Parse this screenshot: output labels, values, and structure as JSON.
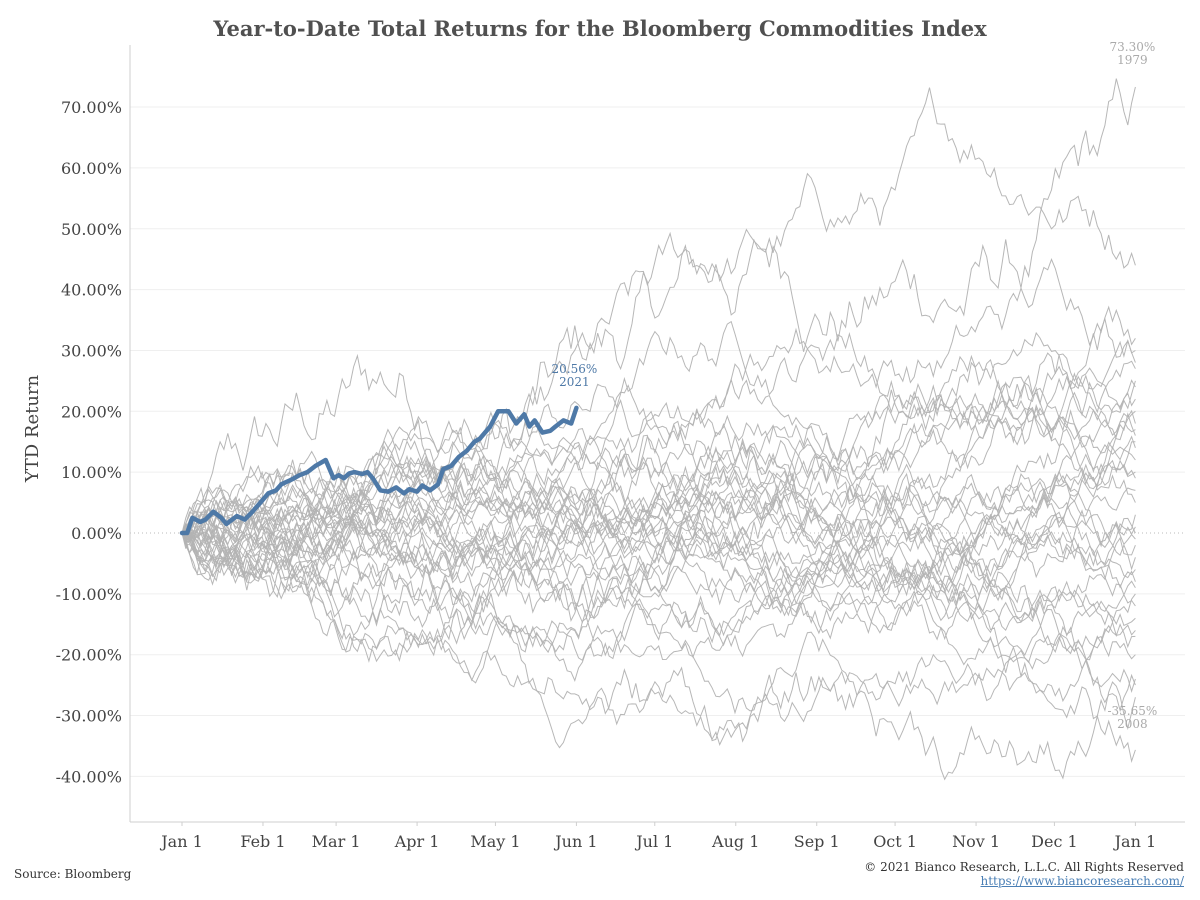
{
  "chart_data": {
    "type": "line",
    "title": "Year-to-Date Total Returns for the Bloomberg Commodities Index",
    "ylabel": "YTD Return",
    "xlabel": "",
    "ylim": [
      -0.45,
      0.78
    ],
    "xlim": [
      0,
      366
    ],
    "yticks": [
      -0.4,
      -0.3,
      -0.2,
      -0.1,
      0.0,
      0.1,
      0.2,
      0.3,
      0.4,
      0.5,
      0.6,
      0.7
    ],
    "ytick_labels": [
      "-40.00%",
      "-30.00%",
      "-20.00%",
      "-10.00%",
      "0.00%",
      "10.00%",
      "20.00%",
      "30.00%",
      "40.00%",
      "50.00%",
      "60.00%",
      "70.00%"
    ],
    "xticks": [
      {
        "label": "Jan 1",
        "day": 0
      },
      {
        "label": "Feb 1",
        "day": 31
      },
      {
        "label": "Mar 1",
        "day": 59
      },
      {
        "label": "Apr 1",
        "day": 90
      },
      {
        "label": "May 1",
        "day": 120
      },
      {
        "label": "Jun 1",
        "day": 151
      },
      {
        "label": "Jul 1",
        "day": 181
      },
      {
        "label": "Aug 1",
        "day": 212
      },
      {
        "label": "Sep 1",
        "day": 243
      },
      {
        "label": "Oct 1",
        "day": 273
      },
      {
        "label": "Nov 1",
        "day": 304
      },
      {
        "label": "Dec 1",
        "day": 334
      },
      {
        "label": "Jan 1",
        "day": 365
      }
    ],
    "grid": true,
    "highlight_color": "#4e79a7",
    "background_color": "#b3b3b3",
    "highlight_series": {
      "name": "2021",
      "x": [
        0,
        2,
        4,
        7,
        9,
        12,
        15,
        17,
        21,
        24,
        27,
        30,
        33,
        36,
        38,
        42,
        45,
        48,
        51,
        55,
        58,
        60,
        62,
        64,
        66,
        69,
        71,
        73,
        76,
        79,
        82,
        85,
        87,
        90,
        92,
        95,
        98,
        100,
        103,
        106,
        109,
        112,
        114,
        118,
        121,
        125,
        128,
        131,
        133,
        135,
        138,
        141,
        143,
        146,
        149,
        151
      ],
      "y": [
        0.0,
        0.0,
        0.025,
        0.018,
        0.022,
        0.035,
        0.025,
        0.015,
        0.028,
        0.022,
        0.035,
        0.05,
        0.065,
        0.07,
        0.08,
        0.088,
        0.095,
        0.1,
        0.11,
        0.12,
        0.09,
        0.095,
        0.09,
        0.098,
        0.1,
        0.097,
        0.1,
        0.09,
        0.07,
        0.068,
        0.075,
        0.065,
        0.072,
        0.068,
        0.078,
        0.07,
        0.08,
        0.105,
        0.11,
        0.125,
        0.135,
        0.15,
        0.155,
        0.175,
        0.2,
        0.2,
        0.18,
        0.195,
        0.175,
        0.185,
        0.165,
        0.168,
        0.175,
        0.185,
        0.18,
        0.2056
      ]
    },
    "end_labels": [
      {
        "series": "2021",
        "value_text": "20.56%",
        "year_text": "2021",
        "x": 151,
        "y": 0.2056
      },
      {
        "series": "1979",
        "value_text": "73.30%",
        "year_text": "1979",
        "x": 365,
        "y": 0.733
      },
      {
        "series": "2008",
        "value_text": "-35.65%",
        "year_text": "2008",
        "x": 365,
        "y": -0.3565
      }
    ],
    "background_series_end_values": [
      0.733,
      0.44,
      0.32,
      0.3,
      0.28,
      0.27,
      0.25,
      0.24,
      0.22,
      0.2,
      0.18,
      0.17,
      0.16,
      0.15,
      0.14,
      0.12,
      0.1,
      0.09,
      0.07,
      0.05,
      0.03,
      0.01,
      0.0,
      -0.01,
      -0.02,
      -0.04,
      -0.06,
      -0.08,
      -0.09,
      -0.1,
      -0.12,
      -0.14,
      -0.16,
      -0.17,
      -0.2,
      -0.24,
      -0.25,
      -0.27,
      -0.3565
    ]
  },
  "footer": {
    "source": "Source: Bloomberg",
    "copyright": "© 2021 Bianco Research, L.L.C. All Rights Reserved",
    "website": "https://www.biancoresearch.com/"
  }
}
